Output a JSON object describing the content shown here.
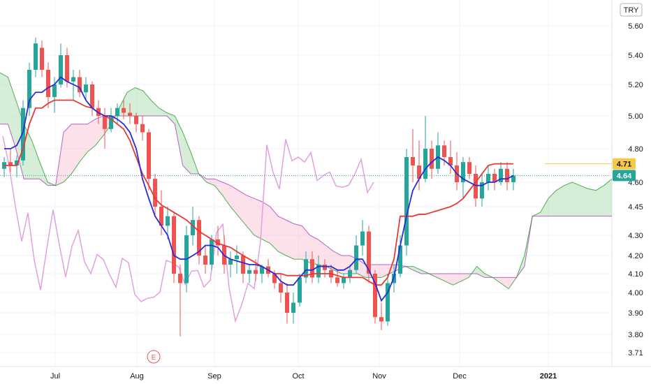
{
  "chart_data": {
    "type": "candlestick",
    "currency": "TRY",
    "y_ticks": [
      5.6,
      5.4,
      5.2,
      5.0,
      4.8,
      4.6,
      4.45,
      4.3,
      4.2,
      4.1,
      4.0,
      3.9,
      3.8,
      3.71
    ],
    "x_ticks": [
      "Jul",
      "Aug",
      "Sep",
      "Oct",
      "Nov",
      "Dec",
      "2021"
    ],
    "earnings_marker": "E",
    "price_badges": [
      {
        "label": "4.71",
        "color": "#f7c948"
      },
      {
        "label": "4.64",
        "color": "#26a69a"
      }
    ],
    "colors": {
      "up": "#26a69a",
      "down": "#ef5350",
      "conversion_line": "#2b2bd9",
      "base_line": "#e53935",
      "lagging_span": "#e1a0e0",
      "cloud_bull": "#a5d6a7",
      "cloud_bear": "#f8bbd0",
      "span_a": "#4caf50",
      "span_b": "#9c27b0"
    },
    "candles": [
      [
        4.68,
        4.75,
        4.63,
        4.72
      ],
      [
        4.72,
        4.8,
        4.66,
        4.7
      ],
      [
        4.7,
        4.76,
        4.63,
        4.73
      ],
      [
        4.73,
        5.1,
        4.7,
        5.05
      ],
      [
        5.05,
        5.35,
        5.0,
        5.3
      ],
      [
        5.3,
        5.52,
        5.25,
        5.48
      ],
      [
        5.45,
        5.5,
        5.25,
        5.3
      ],
      [
        5.3,
        5.35,
        5.05,
        5.12
      ],
      [
        5.12,
        5.25,
        5.02,
        5.2
      ],
      [
        5.2,
        5.48,
        5.18,
        5.4
      ],
      [
        5.4,
        5.45,
        5.18,
        5.22
      ],
      [
        5.22,
        5.3,
        5.1,
        5.25
      ],
      [
        5.25,
        5.3,
        5.12,
        5.15
      ],
      [
        5.15,
        5.25,
        5.1,
        5.2
      ],
      [
        5.2,
        5.22,
        5.0,
        5.05
      ],
      [
        5.05,
        5.1,
        4.95,
        5.0
      ],
      [
        5.0,
        5.05,
        4.8,
        4.92
      ],
      [
        4.92,
        5.05,
        4.9,
        5.0
      ],
      [
        5.0,
        5.08,
        4.95,
        5.05
      ],
      [
        5.05,
        5.1,
        4.98,
        5.02
      ],
      [
        5.02,
        5.08,
        4.95,
        5.0
      ],
      [
        5.0,
        5.02,
        4.9,
        4.95
      ],
      [
        4.95,
        5.0,
        4.85,
        4.9
      ],
      [
        4.9,
        4.92,
        4.55,
        4.62
      ],
      [
        4.62,
        4.65,
        4.4,
        4.45
      ],
      [
        4.45,
        4.55,
        4.3,
        4.35
      ],
      [
        4.35,
        4.45,
        4.28,
        4.4
      ],
      [
        4.4,
        4.42,
        4.05,
        4.1
      ],
      [
        4.1,
        4.15,
        3.79,
        4.05
      ],
      [
        4.05,
        4.35,
        4.0,
        4.3
      ],
      [
        4.3,
        4.45,
        4.25,
        4.38
      ],
      [
        4.38,
        4.4,
        4.15,
        4.2
      ],
      [
        4.2,
        4.25,
        4.1,
        4.15
      ],
      [
        4.15,
        4.3,
        4.12,
        4.28
      ],
      [
        4.28,
        4.35,
        4.2,
        4.25
      ],
      [
        4.25,
        4.3,
        4.1,
        4.15
      ],
      [
        4.15,
        4.22,
        4.08,
        4.18
      ],
      [
        4.18,
        4.25,
        4.1,
        4.2
      ],
      [
        4.2,
        4.22,
        4.05,
        4.1
      ],
      [
        4.1,
        4.15,
        4.05,
        4.12
      ],
      [
        4.12,
        4.18,
        4.06,
        4.1
      ],
      [
        4.1,
        4.15,
        4.05,
        4.14
      ],
      [
        4.14,
        4.18,
        4.08,
        4.1
      ],
      [
        4.1,
        4.12,
        4.02,
        4.05
      ],
      [
        4.05,
        4.1,
        3.95,
        4.0
      ],
      [
        4.0,
        4.05,
        3.85,
        3.9
      ],
      [
        3.9,
        4.0,
        3.85,
        3.95
      ],
      [
        3.95,
        4.1,
        3.93,
        4.08
      ],
      [
        4.08,
        4.22,
        4.05,
        4.18
      ],
      [
        4.18,
        4.22,
        4.05,
        4.08
      ],
      [
        4.08,
        4.2,
        4.05,
        4.15
      ],
      [
        4.15,
        4.18,
        4.08,
        4.12
      ],
      [
        4.12,
        4.15,
        4.05,
        4.08
      ],
      [
        4.08,
        4.12,
        4.03,
        4.05
      ],
      [
        4.05,
        4.1,
        4.02,
        4.08
      ],
      [
        4.08,
        4.15,
        4.05,
        4.12
      ],
      [
        4.12,
        4.3,
        4.1,
        4.25
      ],
      [
        4.25,
        4.38,
        4.2,
        4.32
      ],
      [
        4.32,
        4.35,
        4.05,
        4.1
      ],
      [
        4.1,
        4.12,
        3.85,
        3.88
      ],
      [
        3.88,
        3.95,
        3.82,
        3.86
      ],
      [
        3.86,
        4.1,
        3.84,
        4.05
      ],
      [
        4.05,
        4.15,
        4.0,
        4.1
      ],
      [
        4.1,
        4.3,
        4.08,
        4.25
      ],
      [
        4.25,
        4.8,
        4.2,
        4.75
      ],
      [
        4.75,
        4.92,
        4.6,
        4.7
      ],
      [
        4.7,
        4.85,
        4.55,
        4.62
      ],
      [
        4.62,
        5.0,
        4.6,
        4.8
      ],
      [
        4.8,
        4.85,
        4.62,
        4.68
      ],
      [
        4.68,
        4.9,
        4.65,
        4.82
      ],
      [
        4.82,
        4.85,
        4.7,
        4.75
      ],
      [
        4.75,
        4.85,
        4.65,
        4.7
      ],
      [
        4.7,
        4.78,
        4.55,
        4.6
      ],
      [
        4.6,
        4.75,
        4.5,
        4.72
      ],
      [
        4.72,
        4.75,
        4.62,
        4.65
      ],
      [
        4.65,
        4.7,
        4.45,
        4.5
      ],
      [
        4.5,
        4.65,
        4.45,
        4.6
      ],
      [
        4.6,
        4.7,
        4.55,
        4.65
      ],
      [
        4.65,
        4.68,
        4.55,
        4.6
      ],
      [
        4.6,
        4.72,
        4.58,
        4.68
      ],
      [
        4.68,
        4.72,
        4.55,
        4.6
      ],
      [
        4.6,
        4.68,
        4.55,
        4.64
      ]
    ],
    "conversion_line": [
      4.8,
      4.8,
      4.82,
      4.9,
      5.1,
      5.15,
      5.15,
      5.18,
      5.2,
      5.25,
      5.22,
      5.2,
      5.18,
      5.1,
      5.05,
      5.02,
      5.0,
      5.0,
      4.98,
      4.95,
      4.9,
      4.8,
      4.62,
      4.5,
      4.4,
      4.35,
      4.3,
      4.2,
      4.18,
      4.18,
      4.2,
      4.22,
      4.25,
      4.25,
      4.24,
      4.2,
      4.18,
      4.17,
      4.16,
      4.15,
      4.15,
      4.14,
      4.12,
      4.1,
      4.06,
      4.04,
      4.04,
      4.08,
      4.12,
      4.12,
      4.14,
      4.14,
      4.14,
      4.12,
      4.12,
      4.14,
      4.18,
      4.18,
      4.12,
      4.05,
      3.96,
      4.0,
      4.08,
      4.25,
      4.4,
      4.55,
      4.62,
      4.68,
      4.72,
      4.75,
      4.73,
      4.7,
      4.65,
      4.62,
      4.6,
      4.58,
      4.58,
      4.6,
      4.6,
      4.62,
      4.62,
      4.64
    ],
    "base_line": [
      4.7,
      4.7,
      4.7,
      4.8,
      4.95,
      5.05,
      5.05,
      5.08,
      5.1,
      5.1,
      5.1,
      5.1,
      5.08,
      5.06,
      5.05,
      5.02,
      5.0,
      4.98,
      4.95,
      4.92,
      4.85,
      4.75,
      4.65,
      4.58,
      4.5,
      4.46,
      4.44,
      4.42,
      4.4,
      4.38,
      4.35,
      4.32,
      4.3,
      4.28,
      4.26,
      4.25,
      4.24,
      4.22,
      4.2,
      4.18,
      4.16,
      4.14,
      4.12,
      4.1,
      4.1,
      4.09,
      4.09,
      4.09,
      4.09,
      4.1,
      4.1,
      4.1,
      4.1,
      4.09,
      4.08,
      4.08,
      4.08,
      4.08,
      4.06,
      4.04,
      4.04,
      4.08,
      4.18,
      4.4,
      4.4,
      4.4,
      4.41,
      4.41,
      4.42,
      4.43,
      4.44,
      4.45,
      4.47,
      4.5,
      4.55,
      4.6,
      4.65,
      4.7,
      4.71,
      4.71,
      4.71,
      4.71
    ]
  }
}
